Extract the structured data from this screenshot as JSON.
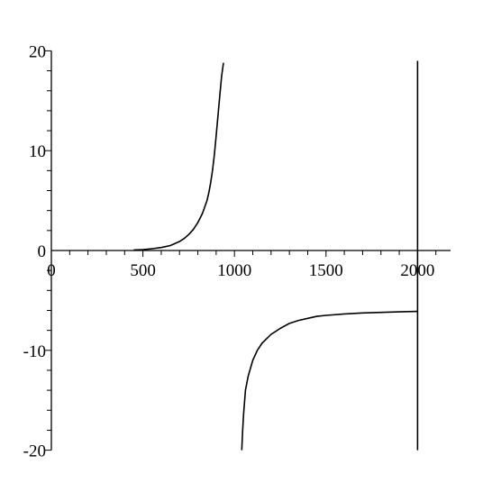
{
  "chart_data": {
    "type": "line",
    "title": "",
    "xlabel": "",
    "ylabel": "",
    "xlim": [
      0,
      2200
    ],
    "ylim": [
      -20,
      20
    ],
    "grid": false,
    "legend": "none",
    "line_color": "#000000",
    "x_ticks": [
      {
        "value": 0,
        "label": "0"
      },
      {
        "value": 500,
        "label": "500"
      },
      {
        "value": 1000,
        "label": "1000"
      },
      {
        "value": 1500,
        "label": "1500"
      },
      {
        "value": 2000,
        "label": "2000"
      }
    ],
    "y_ticks": [
      {
        "value": 20,
        "label": "20"
      },
      {
        "value": 10,
        "label": "10"
      },
      {
        "value": 0,
        "label": "0"
      },
      {
        "value": -10,
        "label": "-10"
      },
      {
        "value": -20,
        "label": "-20"
      }
    ],
    "x_minor_step": 100,
    "y_minor_step": 2,
    "series": [
      {
        "segment": "left-branch",
        "x": [
          450,
          500,
          550,
          600,
          650,
          700,
          725,
          750,
          775,
          800,
          825,
          850,
          860,
          870,
          880,
          890,
          900,
          910,
          920,
          930,
          940
        ],
        "y": [
          0.05,
          0.08,
          0.18,
          0.3,
          0.5,
          0.9,
          1.2,
          1.6,
          2.1,
          2.8,
          3.7,
          5.0,
          5.8,
          6.8,
          8.0,
          9.5,
          11.5,
          13.5,
          15.5,
          17.5,
          18.8
        ]
      },
      {
        "segment": "right-branch",
        "x": [
          1040,
          1045,
          1050,
          1060,
          1075,
          1100,
          1125,
          1150,
          1200,
          1250,
          1300,
          1350,
          1400,
          1450,
          1500,
          1600,
          1700,
          1800,
          1900,
          2000
        ],
        "y": [
          -20.0,
          -18.0,
          -16.3,
          -14.0,
          -12.6,
          -11.0,
          -10.0,
          -9.3,
          -8.4,
          -7.8,
          -7.3,
          -7.0,
          -6.8,
          -6.6,
          -6.5,
          -6.35,
          -6.25,
          -6.2,
          -6.15,
          -6.1
        ]
      },
      {
        "segment": "vertical-line",
        "x": [
          2000,
          2000
        ],
        "y": [
          19,
          -20
        ]
      }
    ]
  }
}
